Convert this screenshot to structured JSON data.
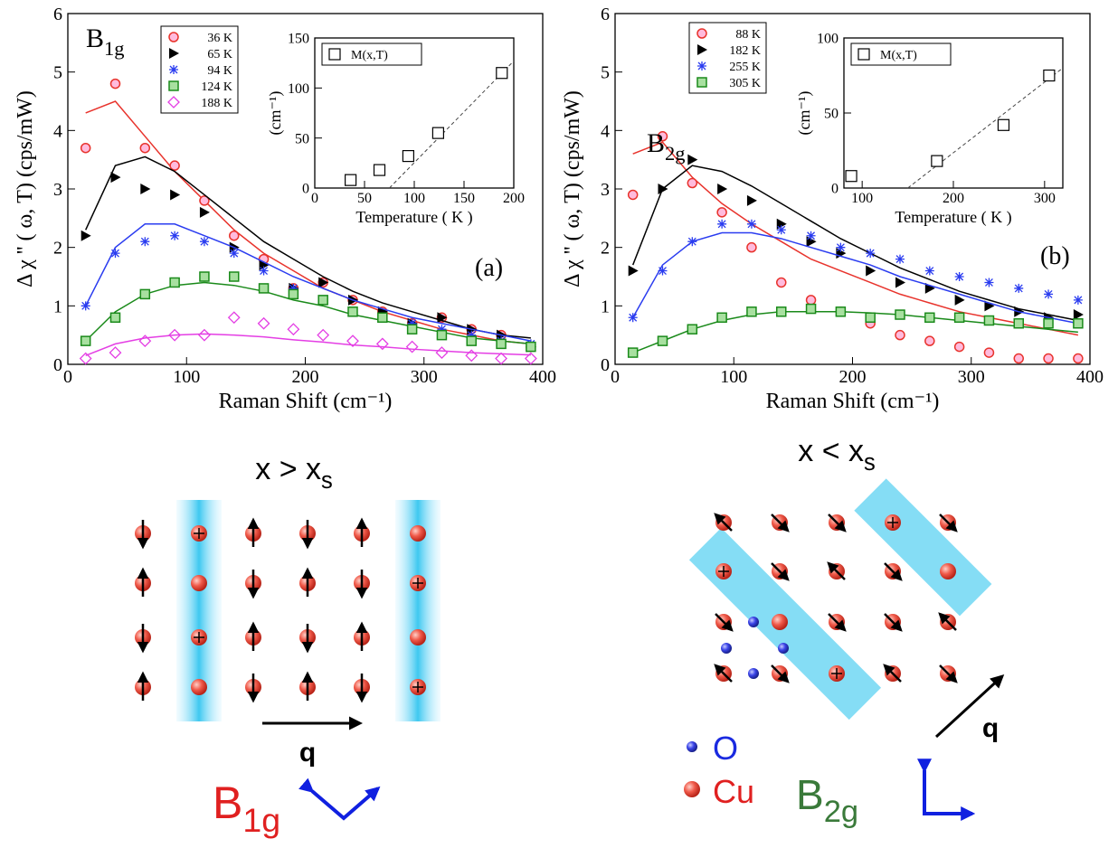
{
  "chart_data": [
    {
      "type": "scatter",
      "title": {
        "text": "B",
        "sub": "1g"
      },
      "panel_label": "(a)",
      "x_label": "Raman Shift (cm⁻¹)",
      "y_label": "Δ χ '' ( ω, T)  (cps/mW)",
      "xlim": [
        0,
        400
      ],
      "xticks": [
        0,
        100,
        200,
        300,
        400
      ],
      "ylim": [
        0,
        6
      ],
      "yticks": [
        0,
        1,
        2,
        3,
        4,
        5,
        6
      ],
      "legend": "upper left",
      "x": [
        15,
        40,
        65,
        90,
        115,
        140,
        165,
        190,
        215,
        240,
        265,
        290,
        315,
        340,
        365,
        390
      ],
      "series": [
        {
          "name": "36 K",
          "color": "#e8332c",
          "marker": "circle",
          "values": [
            3.7,
            4.8,
            3.7,
            3.4,
            2.8,
            2.2,
            1.8,
            1.3,
            1.4,
            1.1,
            0.9,
            0.7,
            0.8,
            0.6,
            0.5,
            0.3
          ],
          "fit": [
            4.3,
            4.5,
            3.9,
            3.3,
            2.8,
            2.3,
            1.9,
            1.6,
            1.3,
            1.1,
            0.9,
            0.75,
            0.6,
            0.5,
            0.4,
            0.35
          ]
        },
        {
          "name": "65 K",
          "color": "#000000",
          "marker": "triangle",
          "values": [
            2.2,
            3.2,
            3.0,
            2.9,
            2.6,
            2.0,
            1.7,
            1.3,
            1.4,
            1.1,
            0.9,
            0.7,
            0.8,
            0.6,
            0.5,
            0.3
          ],
          "fit": [
            2.3,
            3.4,
            3.55,
            3.3,
            2.9,
            2.5,
            2.1,
            1.8,
            1.5,
            1.25,
            1.05,
            0.9,
            0.75,
            0.6,
            0.5,
            0.45
          ]
        },
        {
          "name": "94 K",
          "color": "#2a3cf0",
          "marker": "star",
          "values": [
            1.0,
            1.9,
            2.1,
            2.2,
            2.1,
            1.9,
            1.6,
            1.3,
            1.1,
            0.9,
            0.8,
            0.7,
            0.6,
            0.5,
            0.4,
            0.35
          ],
          "fit": [
            1.0,
            2.0,
            2.4,
            2.4,
            2.2,
            2.0,
            1.75,
            1.5,
            1.3,
            1.1,
            0.95,
            0.8,
            0.7,
            0.6,
            0.5,
            0.4
          ]
        },
        {
          "name": "124 K",
          "color": "#1a8a1a",
          "marker": "square",
          "values": [
            0.4,
            0.8,
            1.2,
            1.4,
            1.5,
            1.5,
            1.3,
            1.2,
            1.1,
            0.9,
            0.8,
            0.6,
            0.5,
            0.4,
            0.35,
            0.3
          ],
          "fit": [
            0.4,
            0.9,
            1.2,
            1.35,
            1.4,
            1.35,
            1.25,
            1.1,
            1.0,
            0.85,
            0.75,
            0.65,
            0.55,
            0.45,
            0.4,
            0.35
          ]
        },
        {
          "name": "188 K",
          "color": "#e43ee4",
          "marker": "diamond",
          "values": [
            0.1,
            0.2,
            0.4,
            0.5,
            0.5,
            0.8,
            0.7,
            0.6,
            0.5,
            0.4,
            0.35,
            0.3,
            0.2,
            0.15,
            0.1,
            0.1
          ],
          "fit": [
            0.15,
            0.35,
            0.45,
            0.5,
            0.52,
            0.5,
            0.47,
            0.42,
            0.38,
            0.33,
            0.3,
            0.26,
            0.23,
            0.2,
            0.18,
            0.16
          ]
        }
      ]
    },
    {
      "type": "scatter",
      "x_label": "Temperature ( K )",
      "y_label": "(cm⁻¹)",
      "xlim": [
        0,
        200
      ],
      "xticks": [
        0,
        50,
        100,
        150,
        200
      ],
      "ylim": [
        0,
        150
      ],
      "yticks": [
        0,
        50,
        100,
        150
      ],
      "legend": "upper left",
      "x": [
        36,
        65,
        94,
        124,
        188
      ],
      "series": [
        {
          "name": "M(x,T)",
          "color": "#000000",
          "marker": "open-square",
          "values": [
            8,
            18,
            32,
            55,
            115
          ]
        }
      ],
      "trend": {
        "x": [
          75,
          200
        ],
        "values": [
          0,
          127
        ]
      }
    },
    {
      "type": "scatter",
      "title": {
        "text": "B",
        "sub": "2g"
      },
      "panel_label": "(b)",
      "x_label": "Raman Shift (cm⁻¹)",
      "y_label": "Δ χ '' ( ω, T)  (cps/mW)",
      "xlim": [
        0,
        400
      ],
      "xticks": [
        0,
        100,
        200,
        300,
        400
      ],
      "ylim": [
        0,
        6
      ],
      "yticks": [
        0,
        1,
        2,
        3,
        4,
        5,
        6
      ],
      "legend": "upper left",
      "x": [
        15,
        40,
        65,
        90,
        115,
        140,
        165,
        190,
        215,
        240,
        265,
        290,
        315,
        340,
        365,
        390
      ],
      "series": [
        {
          "name": "88 K",
          "color": "#e8332c",
          "marker": "circle",
          "values": [
            2.9,
            3.9,
            3.1,
            2.6,
            2.0,
            1.4,
            1.1,
            0.9,
            0.7,
            0.5,
            0.4,
            0.3,
            0.2,
            0.1,
            0.1,
            0.1
          ],
          "fit": [
            3.6,
            3.8,
            3.2,
            2.75,
            2.4,
            2.1,
            1.8,
            1.6,
            1.4,
            1.2,
            1.05,
            0.9,
            0.8,
            0.7,
            0.6,
            0.5
          ]
        },
        {
          "name": "182 K",
          "color": "#000000",
          "marker": "triangle",
          "values": [
            1.6,
            3.0,
            3.5,
            3.0,
            2.8,
            2.4,
            2.1,
            1.9,
            1.6,
            1.4,
            1.3,
            1.1,
            1.0,
            0.9,
            0.8,
            0.85
          ],
          "fit": [
            1.7,
            3.0,
            3.4,
            3.3,
            3.05,
            2.75,
            2.45,
            2.15,
            1.9,
            1.65,
            1.45,
            1.25,
            1.1,
            0.95,
            0.85,
            0.75
          ]
        },
        {
          "name": "255 K",
          "color": "#2a3cf0",
          "marker": "star",
          "values": [
            0.8,
            1.6,
            2.1,
            2.4,
            2.4,
            2.3,
            2.2,
            2.0,
            1.9,
            1.8,
            1.6,
            1.5,
            1.4,
            1.3,
            1.2,
            1.1
          ],
          "fit": [
            0.8,
            1.7,
            2.1,
            2.25,
            2.25,
            2.15,
            2.0,
            1.85,
            1.7,
            1.5,
            1.35,
            1.2,
            1.05,
            0.9,
            0.8,
            0.7
          ]
        },
        {
          "name": "305 K",
          "color": "#1a8a1a",
          "marker": "square",
          "values": [
            0.2,
            0.4,
            0.6,
            0.8,
            0.9,
            0.9,
            0.95,
            0.9,
            0.8,
            0.85,
            0.8,
            0.8,
            0.75,
            0.7,
            0.7,
            0.7
          ],
          "fit": [
            0.2,
            0.4,
            0.6,
            0.75,
            0.85,
            0.9,
            0.9,
            0.9,
            0.88,
            0.85,
            0.8,
            0.75,
            0.7,
            0.65,
            0.6,
            0.55
          ]
        }
      ]
    },
    {
      "type": "scatter",
      "x_label": "Temperature ( K )",
      "y_label": "(cm⁻¹)",
      "xlim": [
        80,
        320
      ],
      "xticks": [
        100,
        200,
        300
      ],
      "ylim": [
        0,
        100
      ],
      "yticks": [
        0,
        50,
        100
      ],
      "legend": "upper left",
      "x": [
        88,
        182,
        255,
        305
      ],
      "series": [
        {
          "name": "M(x,T)",
          "color": "#000000",
          "marker": "open-square",
          "values": [
            8,
            18,
            42,
            75
          ]
        }
      ],
      "trend": {
        "x": [
          150,
          320
        ],
        "values": [
          0,
          80
        ]
      }
    }
  ],
  "diagrams": [
    {
      "title": {
        "text": "x > x",
        "sub": "s"
      },
      "arrow_label": "q",
      "symmetry": {
        "text": "B",
        "sub": "1g"
      }
    },
    {
      "title": {
        "text": "x < x",
        "sub": "s"
      },
      "arrow_label": "q",
      "symmetry": {
        "text": "B",
        "sub": "2g"
      },
      "legend": [
        "O",
        "Cu"
      ]
    }
  ]
}
